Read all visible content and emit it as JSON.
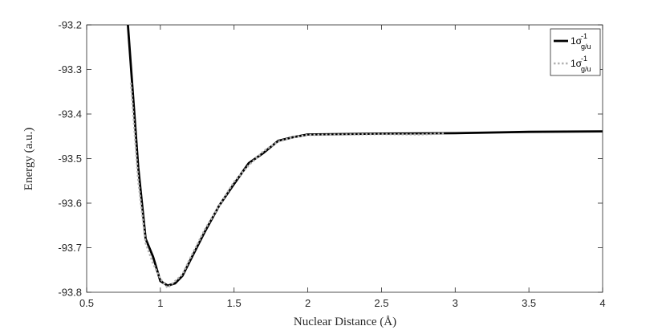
{
  "chart_data": {
    "type": "line",
    "title": "",
    "xlabel": "Nuclear Distance (Å)",
    "ylabel": "Energy (a.u.)",
    "xlim": [
      0.5,
      4
    ],
    "ylim": [
      -93.8,
      -93.2
    ],
    "xticks": [
      0.5,
      1,
      1.5,
      2,
      2.5,
      3,
      3.5,
      4
    ],
    "xtick_labels": [
      "0.5",
      "1",
      "1.5",
      "2",
      "2.5",
      "3",
      "3.5",
      "4"
    ],
    "yticks": [
      -93.2,
      -93.3,
      -93.4,
      -93.5,
      -93.6,
      -93.7,
      -93.8
    ],
    "ytick_labels": [
      "-93.2",
      "-93.3",
      "-93.4",
      "-93.5",
      "-93.6",
      "-93.7",
      "-93.8"
    ],
    "grid": false,
    "legend_position": "top-right",
    "series": [
      {
        "name": "1σg/u-1",
        "legend_base": "1σ",
        "legend_sub": "g/u",
        "legend_sup": "-1",
        "style": "solid",
        "color": "#000000",
        "x": [
          0.78,
          0.85,
          0.9,
          0.95,
          1.0,
          1.05,
          1.1,
          1.15,
          1.2,
          1.3,
          1.4,
          1.5,
          1.6,
          1.7,
          1.8,
          1.9,
          2.0,
          2.5,
          3.0,
          3.5,
          4.0
        ],
        "y": [
          -93.2,
          -93.52,
          -93.68,
          -93.72,
          -93.775,
          -93.785,
          -93.78,
          -93.763,
          -93.73,
          -93.665,
          -93.605,
          -93.557,
          -93.51,
          -93.487,
          -93.46,
          -93.452,
          -93.446,
          -93.444,
          -93.443,
          -93.44,
          -93.439
        ]
      },
      {
        "name": "1σg/u-1",
        "legend_base": "1σ",
        "legend_sub": "g/u",
        "legend_sup": "-1",
        "style": "dotted",
        "color": "#b3b3b3",
        "x": [
          0.8,
          0.85,
          0.9,
          0.95,
          1.0,
          1.05,
          1.1,
          1.15,
          1.2,
          1.3,
          1.4,
          1.5,
          1.6,
          1.7,
          1.8,
          1.9,
          2.0,
          2.5,
          2.75,
          2.93
        ],
        "y": [
          -93.33,
          -93.55,
          -93.69,
          -93.735,
          -93.77,
          -93.79,
          -93.775,
          -93.76,
          -93.725,
          -93.66,
          -93.605,
          -93.552,
          -93.515,
          -93.483,
          -93.462,
          -93.452,
          -93.447,
          -93.445,
          -93.446,
          -93.444
        ]
      }
    ]
  }
}
